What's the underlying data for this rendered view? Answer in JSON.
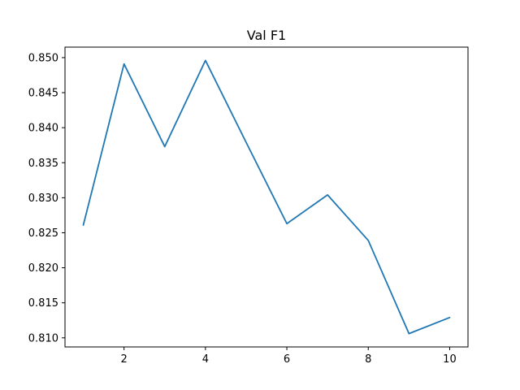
{
  "chart_data": {
    "type": "line",
    "title": "Val F1",
    "xlabel": "",
    "ylabel": "",
    "xlim": [
      0.55,
      10.45
    ],
    "ylim": [
      0.8087,
      0.8515
    ],
    "xticks": [
      2,
      4,
      6,
      8,
      10
    ],
    "xtick_labels": [
      "2",
      "4",
      "6",
      "8",
      "10"
    ],
    "yticks": [
      0.81,
      0.815,
      0.82,
      0.825,
      0.83,
      0.835,
      0.84,
      0.845,
      0.85
    ],
    "ytick_labels": [
      "0.810",
      "0.815",
      "0.820",
      "0.825",
      "0.830",
      "0.835",
      "0.840",
      "0.845",
      "0.850"
    ],
    "grid": false,
    "colors": {
      "series": "#1f77b4",
      "axes": "#000000"
    },
    "series": [
      {
        "x": [
          1,
          2,
          3,
          4,
          5,
          6,
          7,
          8,
          9,
          10
        ],
        "values": [
          0.8261,
          0.8491,
          0.8373,
          0.8496,
          0.8379,
          0.8263,
          0.8304,
          0.8239,
          0.8106,
          0.8129
        ]
      }
    ]
  }
}
